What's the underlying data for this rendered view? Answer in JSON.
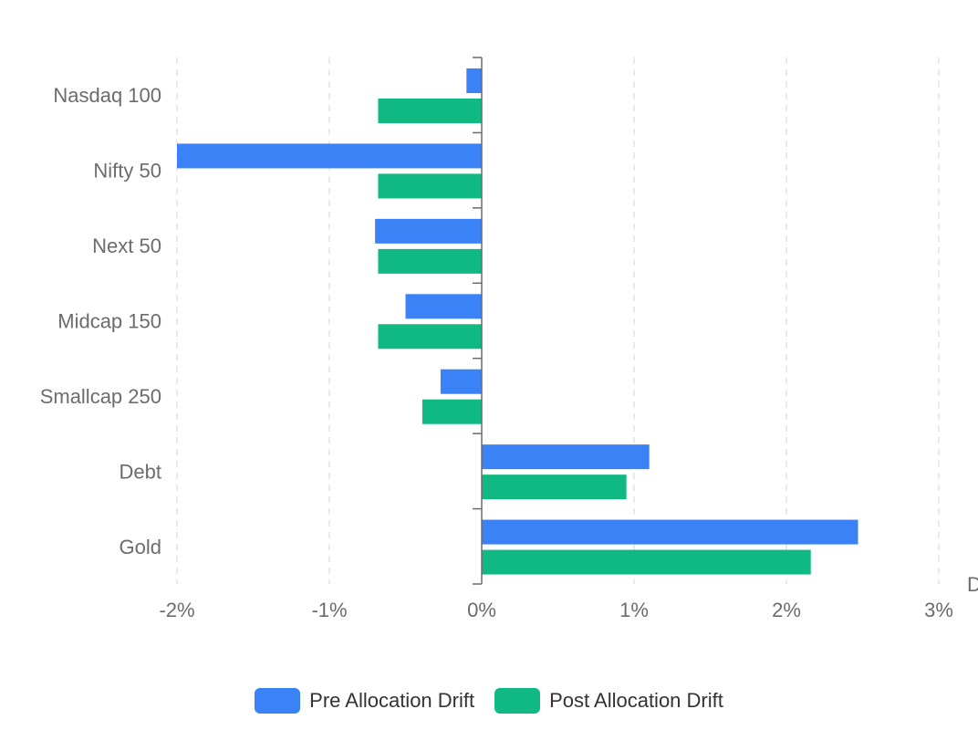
{
  "chart_data": {
    "type": "bar",
    "orientation": "horizontal",
    "categories": [
      "Nasdaq 100",
      "Nifty 50",
      "Next 50",
      "Midcap 150",
      "Smallcap 250",
      "Debt",
      "Gold"
    ],
    "series": [
      {
        "name": "Pre Allocation Drift",
        "color": "#3b82f6",
        "values": [
          -0.1,
          -2.0,
          -0.7,
          -0.5,
          -0.27,
          1.1,
          2.47
        ]
      },
      {
        "name": "Post Allocation Drift",
        "color": "#10b981",
        "values": [
          -0.68,
          -0.68,
          -0.68,
          -0.68,
          -0.39,
          0.95,
          2.16
        ]
      }
    ],
    "x_ticks": [
      "-2%",
      "-1%",
      "0%",
      "1%",
      "2%",
      "3%"
    ],
    "xlim": [
      -2,
      3
    ],
    "xlabel": "D",
    "grid": "vertical dashed",
    "legend_position": "bottom-center"
  }
}
